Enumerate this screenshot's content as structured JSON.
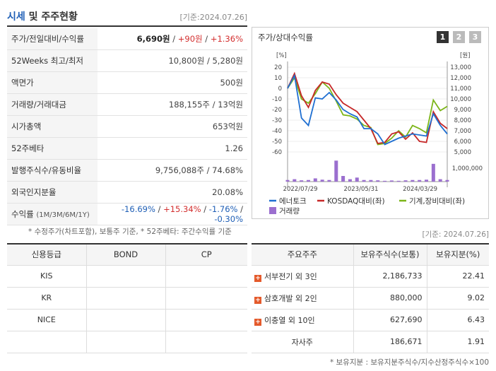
{
  "header": {
    "title_accent": "시세",
    "title_rest": " 및 주주현황",
    "date": "[기준:2024.07.26]"
  },
  "info": {
    "price_label": "주가/전일대비/수익률",
    "price": "6,690원",
    "change": "+90원",
    "change_pct": "+1.36%",
    "w52_label": "52Weeks 최고/최저",
    "w52_value": "10,800원 / 5,280원",
    "par_label": "액면가",
    "par_value": "500원",
    "volume_label": "거래량/거래대금",
    "volume_value": "188,155주 / 13억원",
    "mcap_label": "시가총액",
    "mcap_value": "653억원",
    "beta_label": "52주베타",
    "beta_value": "1.26",
    "shares_label": "발행주식수/유동비율",
    "shares_value": "9,756,088주 / 74.68%",
    "foreign_label": "외국인지분율",
    "foreign_value": "20.08%",
    "return_label": "수익률",
    "return_sub": "(1M/3M/6M/1Y)",
    "r1": "-16.69%",
    "r2": "+15.34%",
    "r3": "-1.76%",
    "r4": "-0.30%"
  },
  "notes": {
    "note1": "* 수정주가(차트포함), 보통주 기준, * 52주베타: 주간수익률 기준",
    "date2": "[기준: 2024.07.26]",
    "note2": "* 보유지분 : 보유지분주식수/지수산정주식수×100"
  },
  "chart": {
    "title": "주가/상대수익률",
    "pages": [
      "1",
      "2",
      "3"
    ],
    "left_unit": "[%]",
    "right_unit": "[원]",
    "legend": [
      "에너토크",
      "KOSDAQ대비(좌)",
      "기계,장비대비(좌)",
      "거래량"
    ],
    "colors": {
      "stock": "#1f6fd1",
      "kosdaq": "#c62828",
      "machine": "#7cb518",
      "volume": "#9b6fcf"
    }
  },
  "chart_data": {
    "type": "line",
    "x_ticks": [
      "2022/07/29",
      "2023/05/31",
      "2024/03/29"
    ],
    "left_ticks": [
      "20",
      "10",
      "0",
      "-10",
      "-20",
      "-30",
      "-40",
      "-50",
      "-60"
    ],
    "right_ticks": [
      "13,000",
      "12,000",
      "11,000",
      "10,000",
      "9,000",
      "8,000",
      "7,000",
      "6,000",
      "5,000"
    ],
    "volume_tick": "1,000,000",
    "ylim_left": [
      -60,
      20
    ],
    "series": [
      {
        "name": "에너토크",
        "values": [
          0,
          12,
          -28,
          -35,
          -9,
          -10,
          -4,
          -11,
          -20,
          -24,
          -27,
          -38,
          -38,
          -43,
          -53,
          -50,
          -47,
          -45,
          -43,
          -44,
          -45,
          -24,
          -35,
          -43
        ]
      },
      {
        "name": "KOSDAQ대비(좌)",
        "values": [
          0,
          14,
          -7,
          -18,
          -2,
          6,
          4,
          -6,
          -14,
          -18,
          -22,
          -30,
          -38,
          -52,
          -51,
          -43,
          -41,
          -48,
          -42,
          -50,
          -51,
          -22,
          -33,
          -38
        ]
      },
      {
        "name": "기계,장비대비(좌)",
        "values": [
          0,
          10,
          -10,
          -14,
          -5,
          6,
          0,
          -12,
          -25,
          -26,
          -29,
          -35,
          -37,
          -53,
          -52,
          -47,
          -40,
          -46,
          -35,
          -38,
          -42,
          -11,
          -21,
          -17
        ]
      }
    ],
    "volume": [
      0.1,
      0.15,
      0.08,
      0.1,
      0.2,
      0.12,
      0.1,
      1.3,
      0.35,
      0.15,
      0.25,
      0.1,
      0.1,
      0.08,
      0.05,
      0.07,
      0.05,
      0.08,
      0.1,
      0.1,
      0.12,
      1.1,
      0.15,
      0.1
    ]
  },
  "credit": {
    "headers": [
      "신용등급",
      "BOND",
      "CP"
    ],
    "rows": [
      {
        "agency": "KIS",
        "bond": "",
        "cp": ""
      },
      {
        "agency": "KR",
        "bond": "",
        "cp": ""
      },
      {
        "agency": "NICE",
        "bond": "",
        "cp": ""
      },
      {
        "agency": "",
        "bond": "",
        "cp": ""
      }
    ]
  },
  "holders": {
    "headers": [
      "주요주주",
      "보유주식수(보통)",
      "보유지분(%)"
    ],
    "header_subs": [
      "",
      "(보통)",
      "(%)"
    ],
    "rows": [
      {
        "name": "서부전기 외 3인",
        "shares": "2,186,733",
        "pct": "22.41"
      },
      {
        "name": "삼호개발 외 2인",
        "shares": "880,000",
        "pct": "9.02"
      },
      {
        "name": "이충열 외 10인",
        "shares": "627,690",
        "pct": "6.43"
      },
      {
        "name": "자사주",
        "shares": "186,671",
        "pct": "1.91"
      }
    ]
  }
}
